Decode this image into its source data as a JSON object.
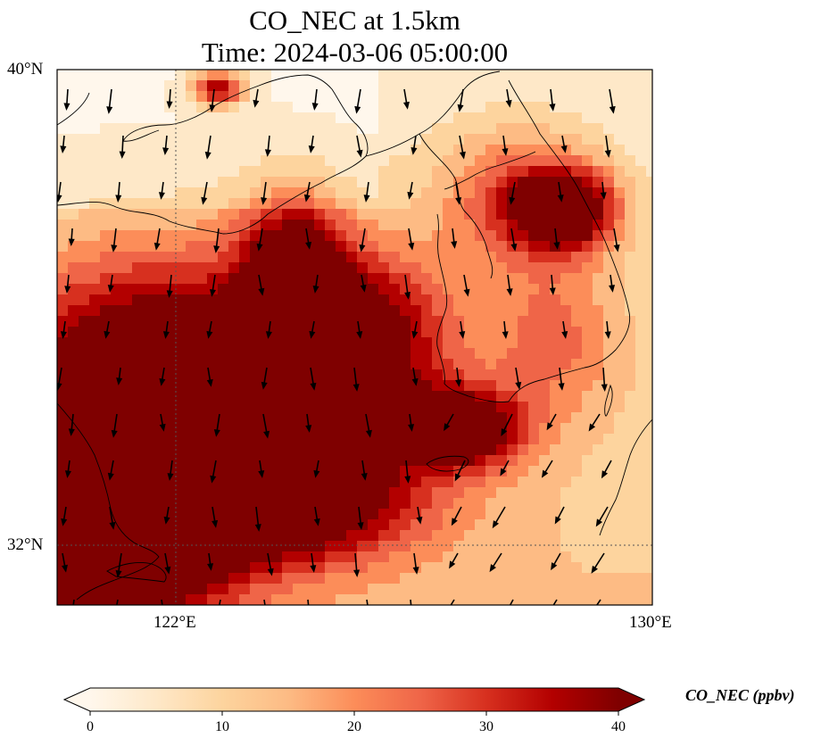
{
  "title": {
    "line1": "CO_NEC at 1.5km",
    "line2": "Time: 2024-03-06 05:00:00"
  },
  "axes": {
    "lat_labels": [
      "40°N",
      "32°N"
    ],
    "lon_labels": [
      "122°E",
      "130°E"
    ],
    "lat_range": [
      31,
      40
    ],
    "lon_range": [
      120,
      130
    ],
    "gridlines": true
  },
  "colorbar": {
    "label": "CO_NEC (ppbv)",
    "ticks": [
      "0",
      "10",
      "20",
      "30",
      "40"
    ],
    "range": [
      0,
      40
    ],
    "extend": "both",
    "colormap": "OrRd",
    "colors": [
      "#fff7ec",
      "#fee8c8",
      "#fdd49e",
      "#fdbb84",
      "#fc8d59",
      "#ef6548",
      "#d7301f",
      "#b30000",
      "#7f0000"
    ]
  },
  "chart_data": {
    "type": "heatmap",
    "variable": "CO_NEC",
    "units": "ppbv",
    "level": "1.5km",
    "time": "2024-03-06 05:00:00",
    "lon_range": [
      120,
      130
    ],
    "lat_range": [
      31,
      40
    ],
    "plume": "high CO_NEC (>=40 ppbv) over the Yellow Sea and East China Sea from ~120°E–127°E, 31°N–36.5°N; low values (<5 ppbv) over northern Bohai region and southeast corner",
    "wind_vectors": "predominantly southward/south-southwestward at 1.5km"
  }
}
